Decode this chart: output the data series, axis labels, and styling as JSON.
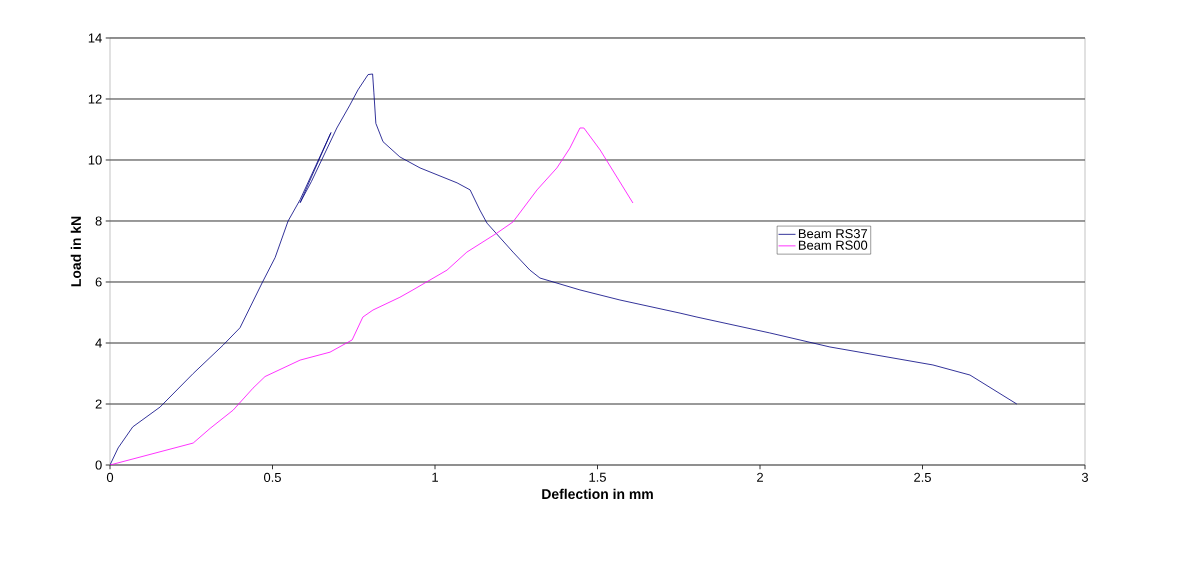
{
  "chart_data": {
    "type": "line",
    "xlabel": "Deflection in mm",
    "ylabel": "Load in kN",
    "xlim": [
      0,
      3
    ],
    "xticks": [
      0,
      0.5,
      1,
      1.5,
      2,
      2.5,
      3
    ],
    "ylim": [
      0,
      14
    ],
    "yticks": [
      0,
      2,
      4,
      6,
      8,
      10,
      12,
      14
    ],
    "grid": "y",
    "legend": "right",
    "marker": "none",
    "line_style": "solid",
    "series": [
      {
        "name": "Beam RS37",
        "color": "#000080",
        "x": [
          0,
          0.025,
          0.07,
          0.154,
          0.256,
          0.348,
          0.4,
          0.468,
          0.508,
          0.548,
          0.585,
          0.68,
          0.585,
          0.62,
          0.698,
          0.738,
          0.763,
          0.794,
          0.808,
          0.812,
          0.818,
          0.84,
          0.892,
          0.954,
          1.068,
          1.108,
          1.138,
          1.16,
          1.24,
          1.292,
          1.323,
          1.446,
          1.569,
          1.754,
          1.806,
          2.03,
          2.215,
          2.532,
          2.646,
          2.79
        ],
        "values": [
          0,
          0.56,
          1.25,
          1.9,
          3.0,
          3.93,
          4.5,
          5.97,
          6.8,
          8.0,
          8.7,
          10.9,
          8.6,
          9.3,
          11.05,
          11.8,
          12.3,
          12.8,
          12.82,
          12.2,
          11.2,
          10.6,
          10.1,
          9.74,
          9.25,
          9.02,
          8.36,
          7.93,
          6.98,
          6.39,
          6.13,
          5.74,
          5.41,
          4.98,
          4.85,
          4.33,
          3.87,
          3.28,
          2.95,
          2.0
        ]
      },
      {
        "name": "Beam RS00",
        "color": "#ff00ff",
        "x": [
          0,
          0.256,
          0.308,
          0.379,
          0.44,
          0.477,
          0.585,
          0.677,
          0.745,
          0.778,
          0.809,
          0.892,
          0.932,
          1.037,
          1.098,
          1.19,
          1.24,
          1.314,
          1.375,
          1.415,
          1.446,
          1.458,
          1.508,
          1.609
        ],
        "values": [
          0,
          0.72,
          1.2,
          1.8,
          2.52,
          2.9,
          3.44,
          3.7,
          4.1,
          4.85,
          5.08,
          5.5,
          5.74,
          6.39,
          6.98,
          7.6,
          7.97,
          9.02,
          9.74,
          10.39,
          11.05,
          11.05,
          10.33,
          8.59
        ]
      }
    ]
  }
}
